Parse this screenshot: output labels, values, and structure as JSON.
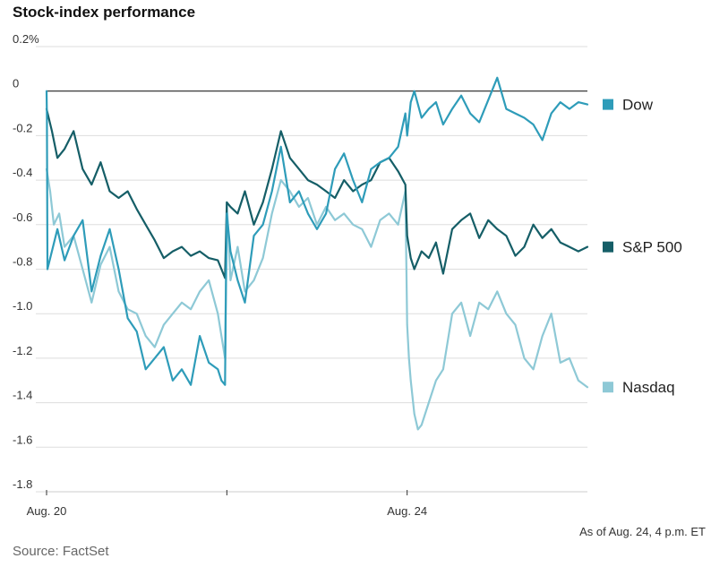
{
  "chart_data": {
    "type": "line",
    "title": "Stock-index performance",
    "note": "As of Aug. 24, 4 p.m. ET",
    "source": "Source: FactSet",
    "ylim": [
      -1.8,
      0.2
    ],
    "yticks": [
      0.2,
      0,
      -0.2,
      -0.4,
      -0.6,
      -0.8,
      -1.0,
      -1.2,
      -1.4,
      -1.6,
      -1.8
    ],
    "ytick_labels": [
      "0.2%",
      "0",
      "-0.2",
      "-0.4",
      "-0.6",
      "-0.8",
      "-1.0",
      "-1.2",
      "-1.4",
      "-1.6",
      "-1.8"
    ],
    "xlim": [
      0,
      3
    ],
    "xticks": [
      0,
      1,
      2
    ],
    "xtick_labels": [
      "Aug. 20",
      "",
      "Aug. 24"
    ],
    "grid": true,
    "legend_placement": "right, at series ends",
    "series": [
      {
        "name": "Dow",
        "color": "#2e9cb9",
        "x": [
          0,
          0.002,
          0.005,
          0.06,
          0.1,
          0.15,
          0.2,
          0.25,
          0.3,
          0.35,
          0.4,
          0.45,
          0.5,
          0.55,
          0.6,
          0.65,
          0.7,
          0.75,
          0.8,
          0.85,
          0.9,
          0.95,
          0.97,
          0.99,
          0.995,
          1.0,
          1.02,
          1.06,
          1.1,
          1.15,
          1.2,
          1.25,
          1.3,
          1.35,
          1.4,
          1.45,
          1.5,
          1.55,
          1.6,
          1.65,
          1.7,
          1.75,
          1.8,
          1.85,
          1.9,
          1.95,
          1.99,
          2.0,
          2.02,
          2.04,
          2.08,
          2.12,
          2.16,
          2.2,
          2.25,
          2.3,
          2.35,
          2.4,
          2.45,
          2.5,
          2.55,
          2.6,
          2.65,
          2.7,
          2.75,
          2.8,
          2.85,
          2.9,
          2.95,
          3.0
        ],
        "values": [
          0.0,
          -0.12,
          -0.8,
          -0.62,
          -0.76,
          -0.65,
          -0.58,
          -0.9,
          -0.74,
          -0.62,
          -0.8,
          -1.02,
          -1.08,
          -1.25,
          -1.2,
          -1.15,
          -1.3,
          -1.25,
          -1.32,
          -1.1,
          -1.22,
          -1.25,
          -1.3,
          -1.32,
          -0.9,
          -0.55,
          -0.72,
          -0.85,
          -0.95,
          -0.65,
          -0.6,
          -0.45,
          -0.25,
          -0.5,
          -0.45,
          -0.55,
          -0.62,
          -0.55,
          -0.35,
          -0.28,
          -0.4,
          -0.5,
          -0.35,
          -0.32,
          -0.3,
          -0.25,
          -0.1,
          -0.2,
          -0.05,
          0.0,
          -0.12,
          -0.08,
          -0.05,
          -0.15,
          -0.08,
          -0.02,
          -0.1,
          -0.14,
          -0.04,
          0.06,
          -0.08,
          -0.1,
          -0.12,
          -0.15,
          -0.22,
          -0.1,
          -0.05,
          -0.08,
          -0.05,
          -0.06
        ]
      },
      {
        "name": "S&P 500",
        "color": "#155e67",
        "x": [
          0,
          0.03,
          0.06,
          0.1,
          0.15,
          0.2,
          0.25,
          0.3,
          0.35,
          0.4,
          0.45,
          0.5,
          0.55,
          0.6,
          0.65,
          0.7,
          0.75,
          0.8,
          0.85,
          0.9,
          0.95,
          0.99,
          1.0,
          1.02,
          1.06,
          1.1,
          1.15,
          1.2,
          1.25,
          1.3,
          1.35,
          1.4,
          1.45,
          1.5,
          1.55,
          1.6,
          1.65,
          1.7,
          1.75,
          1.8,
          1.85,
          1.9,
          1.95,
          1.99,
          2.0,
          2.02,
          2.04,
          2.08,
          2.12,
          2.16,
          2.2,
          2.25,
          2.3,
          2.35,
          2.4,
          2.45,
          2.5,
          2.55,
          2.6,
          2.65,
          2.7,
          2.75,
          2.8,
          2.85,
          2.9,
          2.95,
          3.0
        ],
        "values": [
          -0.08,
          -0.18,
          -0.3,
          -0.26,
          -0.18,
          -0.35,
          -0.42,
          -0.32,
          -0.45,
          -0.48,
          -0.45,
          -0.53,
          -0.6,
          -0.67,
          -0.75,
          -0.72,
          -0.7,
          -0.74,
          -0.72,
          -0.75,
          -0.76,
          -0.84,
          -0.5,
          -0.52,
          -0.55,
          -0.45,
          -0.6,
          -0.5,
          -0.35,
          -0.18,
          -0.3,
          -0.35,
          -0.4,
          -0.42,
          -0.45,
          -0.48,
          -0.4,
          -0.45,
          -0.42,
          -0.4,
          -0.32,
          -0.3,
          -0.36,
          -0.42,
          -0.65,
          -0.75,
          -0.8,
          -0.72,
          -0.75,
          -0.68,
          -0.82,
          -0.62,
          -0.58,
          -0.55,
          -0.66,
          -0.58,
          -0.62,
          -0.65,
          -0.74,
          -0.7,
          -0.6,
          -0.66,
          -0.62,
          -0.68,
          -0.7,
          -0.72,
          -0.7
        ]
      },
      {
        "name": "Nasdaq",
        "color": "#8ec9d6",
        "x": [
          0,
          0.02,
          0.04,
          0.07,
          0.1,
          0.15,
          0.2,
          0.25,
          0.3,
          0.35,
          0.4,
          0.45,
          0.5,
          0.55,
          0.6,
          0.65,
          0.7,
          0.75,
          0.8,
          0.85,
          0.9,
          0.95,
          0.99,
          1.0,
          1.02,
          1.06,
          1.1,
          1.15,
          1.2,
          1.25,
          1.3,
          1.35,
          1.4,
          1.45,
          1.5,
          1.55,
          1.6,
          1.65,
          1.7,
          1.75,
          1.8,
          1.85,
          1.9,
          1.95,
          1.99,
          2.0,
          2.01,
          2.02,
          2.04,
          2.06,
          2.08,
          2.12,
          2.16,
          2.2,
          2.25,
          2.3,
          2.35,
          2.4,
          2.45,
          2.5,
          2.55,
          2.6,
          2.65,
          2.7,
          2.75,
          2.8,
          2.85,
          2.9,
          2.95,
          3.0
        ],
        "values": [
          -0.35,
          -0.45,
          -0.6,
          -0.55,
          -0.7,
          -0.65,
          -0.8,
          -0.95,
          -0.78,
          -0.7,
          -0.9,
          -0.98,
          -1.0,
          -1.1,
          -1.15,
          -1.05,
          -1.0,
          -0.95,
          -0.98,
          -0.9,
          -0.85,
          -1.0,
          -1.2,
          -0.5,
          -0.85,
          -0.7,
          -0.9,
          -0.85,
          -0.75,
          -0.55,
          -0.4,
          -0.45,
          -0.52,
          -0.48,
          -0.6,
          -0.52,
          -0.58,
          -0.55,
          -0.6,
          -0.62,
          -0.7,
          -0.58,
          -0.55,
          -0.6,
          -0.45,
          -1.05,
          -1.2,
          -1.3,
          -1.45,
          -1.52,
          -1.5,
          -1.4,
          -1.3,
          -1.25,
          -1.0,
          -0.95,
          -1.1,
          -0.95,
          -0.98,
          -0.9,
          -1.0,
          -1.05,
          -1.2,
          -1.25,
          -1.1,
          -1.0,
          -1.22,
          -1.2,
          -1.3,
          -1.33
        ]
      }
    ]
  }
}
